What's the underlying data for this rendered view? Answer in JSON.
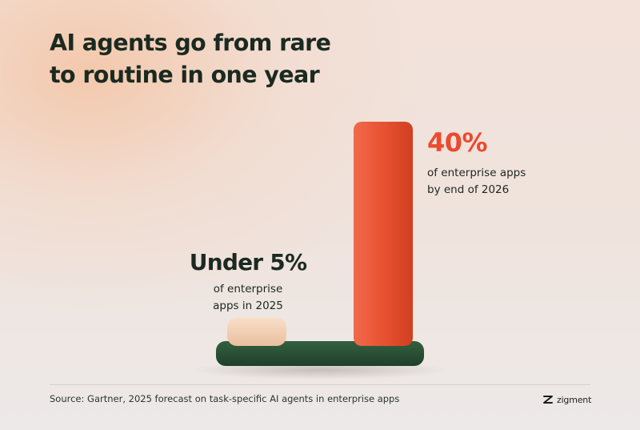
{
  "title": "AI agents go from rare\nto routine in one year",
  "chart_data": {
    "type": "bar",
    "categories": [
      "2025",
      "end of 2026"
    ],
    "values": [
      5,
      40
    ],
    "ylim": [
      0,
      40
    ],
    "value_labels": [
      "Under 5%",
      "40%"
    ],
    "descriptions": [
      "of enterprise\napps in 2025",
      "of enterprise apps\nby end of 2026"
    ],
    "colors": [
      "#f1cdb0",
      "#e9543a"
    ],
    "base_color": "#2c5237"
  },
  "source": "Source: Gartner, 2025 forecast on task-specific AI agents in enterprise apps",
  "brand": {
    "name": "zigment",
    "icon": "zigment-logo-icon"
  },
  "colors": {
    "accent": "#ec4a2f",
    "text": "#1b2a21"
  }
}
